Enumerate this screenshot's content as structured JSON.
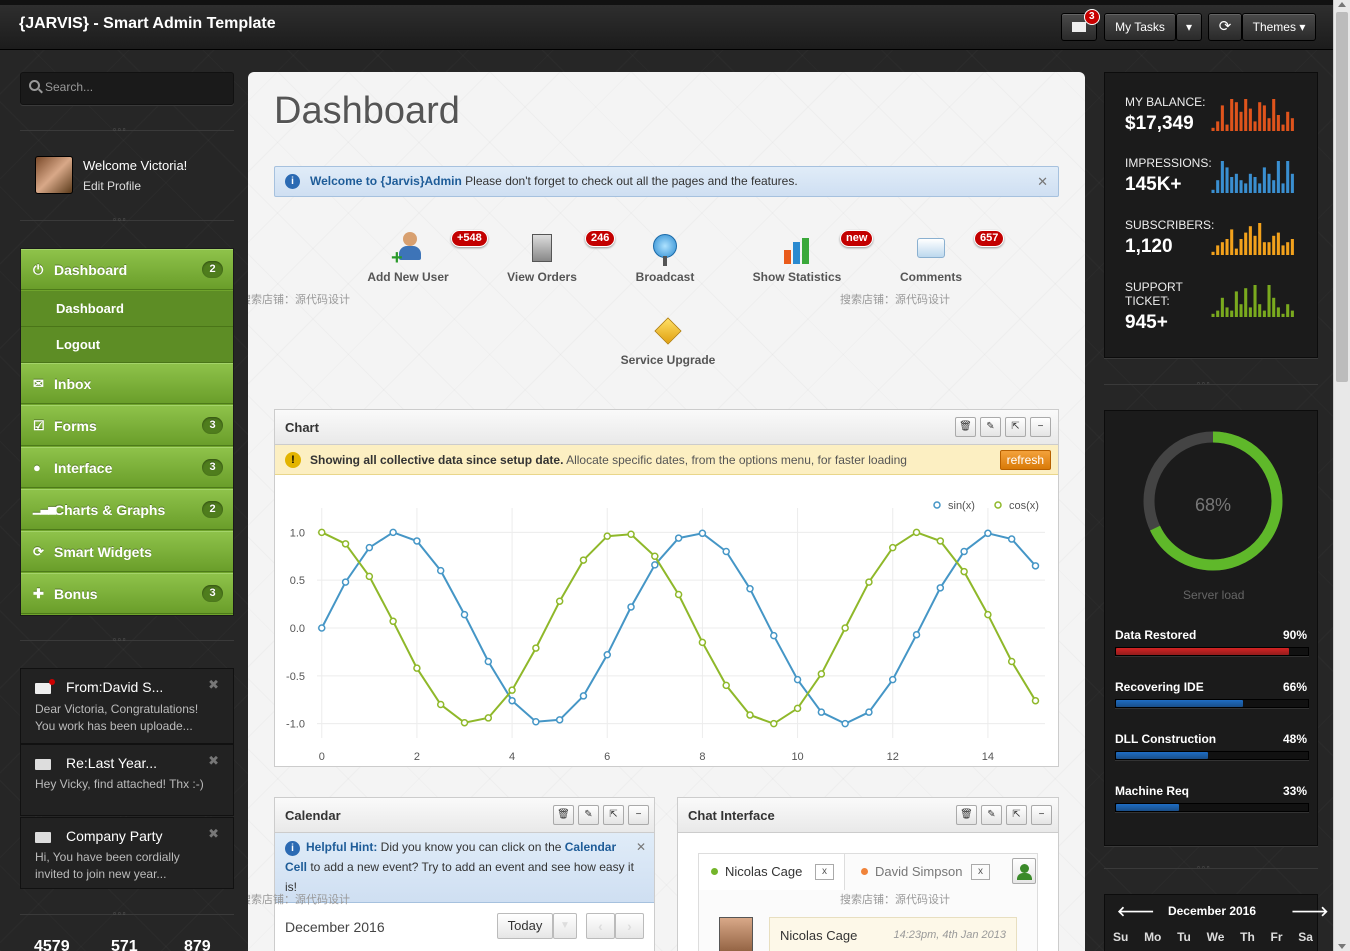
{
  "topbar": {
    "brand": "{JARVIS} - Smart Admin Template",
    "mail_count": "3",
    "tasks_label": "My Tasks",
    "themes_label": "Themes"
  },
  "sidebar": {
    "search_placeholder": "Search...",
    "user": {
      "welcome": "Welcome Victoria!",
      "edit": "Edit Profile"
    },
    "nav": [
      {
        "label": "Dashboard",
        "count": "2"
      },
      {
        "label": "Inbox",
        "count": ""
      },
      {
        "label": "Forms",
        "count": "3"
      },
      {
        "label": "Interface",
        "count": "3"
      },
      {
        "label": "Charts & Graphs",
        "count": "2"
      },
      {
        "label": "Smart Widgets",
        "count": ""
      },
      {
        "label": "Bonus",
        "count": "3"
      }
    ],
    "subnav": [
      "Dashboard",
      "Logout"
    ],
    "messages": [
      {
        "from": "From:David S...",
        "body": "Dear Victoria, Congratulations! You work has been uploade..."
      },
      {
        "from": "Re:Last Year...",
        "body": "Hey Vicky, find attached! Thx :-)"
      },
      {
        "from": "Company Party",
        "body": "Hi, You have been cordially invited to join new year..."
      }
    ],
    "bottom_stats": [
      "4579",
      "571",
      "879"
    ]
  },
  "main": {
    "title": "Dashboard",
    "alert_strong": "Welcome to {Jarvis}Admin",
    "alert_text": " Please don't forget to check out all the pages and the features.",
    "shortcuts": [
      {
        "label": "Add New User",
        "badge": "+548"
      },
      {
        "label": "View Orders",
        "badge": "246"
      },
      {
        "label": "Broadcast",
        "badge": ""
      },
      {
        "label": "Show Statistics",
        "badge": "new"
      },
      {
        "label": "Comments",
        "badge": "657"
      },
      {
        "label": "Service Upgrade",
        "badge": ""
      }
    ],
    "watermark": "搜索店铺：源代码设计",
    "chart_widget": {
      "title": "Chart",
      "warn_strong": "Showing all collective data since setup date.",
      "warn_text": " Allocate specific dates, from the options menu, for faster loading",
      "refresh": "refresh"
    },
    "calendar": {
      "title": "Calendar",
      "hint_strong": "Helpful Hint:",
      "hint_a": " Did you know you can click on the ",
      "hint_cal": "Calendar",
      "hint_cell": "Cell",
      "hint_b": " to add a new event? Try to add an event and see how easy it is!",
      "month": "December 2016",
      "today": "Today"
    },
    "chat": {
      "title": "Chat Interface",
      "tab1": "Nicolas Cage",
      "tab2": "David Simpson",
      "msg_name": "Nicolas Cage",
      "msg_time": "14:23pm, 4th Jan 2013"
    }
  },
  "chart_data": {
    "type": "line",
    "series": [
      {
        "name": "sin(x)",
        "color": "#4596c6"
      },
      {
        "name": "cos(x)",
        "color": "#8fb82a"
      }
    ],
    "x": [
      0,
      0.5,
      1,
      1.5,
      2,
      2.5,
      3,
      3.5,
      4,
      4.5,
      5,
      5.5,
      6,
      6.5,
      7,
      7.5,
      8,
      8.5,
      9,
      9.5,
      10,
      10.5,
      11,
      11.5,
      12,
      12.5,
      13,
      13.5,
      14,
      14.5,
      15
    ],
    "sin_values": [
      0,
      0.48,
      0.84,
      1.0,
      0.91,
      0.6,
      0.14,
      -0.35,
      -0.76,
      -0.98,
      -0.96,
      -0.71,
      -0.28,
      0.22,
      0.66,
      0.94,
      0.99,
      0.8,
      0.41,
      -0.08,
      -0.54,
      -0.88,
      -1.0,
      -0.88,
      -0.54,
      -0.07,
      0.42,
      0.8,
      0.99,
      0.93,
      0.65
    ],
    "cos_values": [
      1.0,
      0.88,
      0.54,
      0.07,
      -0.42,
      -0.8,
      -0.99,
      -0.94,
      -0.65,
      -0.21,
      0.28,
      0.71,
      0.96,
      0.98,
      0.75,
      0.35,
      -0.15,
      -0.6,
      -0.91,
      -1.0,
      -0.84,
      -0.48,
      0.0,
      0.48,
      0.84,
      1.0,
      0.91,
      0.59,
      0.14,
      -0.35,
      -0.76
    ],
    "xticks": [
      0,
      2,
      4,
      6,
      8,
      10,
      12,
      14
    ],
    "yticks": [
      1.0,
      0.5,
      0.0,
      -0.5,
      -1.0
    ],
    "ylim": [
      -1.15,
      1.15
    ],
    "xlim": [
      -0.1,
      15.2
    ],
    "legend": "top-right"
  },
  "right": {
    "stats": [
      {
        "label": "MY BALANCE:",
        "value": "$17,349",
        "color": "#e0541c",
        "bars": [
          1,
          3,
          8,
          2,
          10,
          9,
          6,
          10,
          7,
          3,
          9,
          8,
          4,
          10,
          5,
          2,
          6,
          4
        ]
      },
      {
        "label": "IMPRESSIONS:",
        "value": "145K+",
        "color": "#3a8fd1",
        "bars": [
          1,
          4,
          10,
          8,
          5,
          6,
          4,
          3,
          6,
          5,
          3,
          8,
          6,
          4,
          10,
          3,
          10,
          6
        ]
      },
      {
        "label": "SUBSCRIBERS:",
        "value": "1,120",
        "color": "#f3a21c",
        "bars": [
          1,
          3,
          4,
          5,
          8,
          2,
          5,
          7,
          9,
          6,
          10,
          4,
          4,
          6,
          7,
          3,
          4,
          5
        ]
      },
      {
        "label": "SUPPORT TICKET:",
        "value": "945+",
        "color": "#7aaa1e",
        "bars": [
          1,
          2,
          6,
          3,
          2,
          8,
          4,
          9,
          3,
          10,
          4,
          2,
          10,
          6,
          3,
          1,
          4,
          2
        ]
      }
    ],
    "load": {
      "percent": "68%",
      "label": "Server load",
      "fraction": 0.68
    },
    "progress": [
      {
        "label": "Data Restored",
        "value": "90%",
        "pct": 90,
        "color": "#d42323"
      },
      {
        "label": "Recovering IDE",
        "value": "66%",
        "pct": 66,
        "color": "#1e6dc4"
      },
      {
        "label": "DLL Construction",
        "value": "48%",
        "pct": 48,
        "color": "#1e6dc4"
      },
      {
        "label": "Machine Req",
        "value": "33%",
        "pct": 33,
        "color": "#1e6dc4"
      }
    ],
    "mini_cal": {
      "month": "December 2016",
      "days": [
        "Su",
        "Mo",
        "Tu",
        "We",
        "Th",
        "Fr",
        "Sa"
      ]
    }
  }
}
